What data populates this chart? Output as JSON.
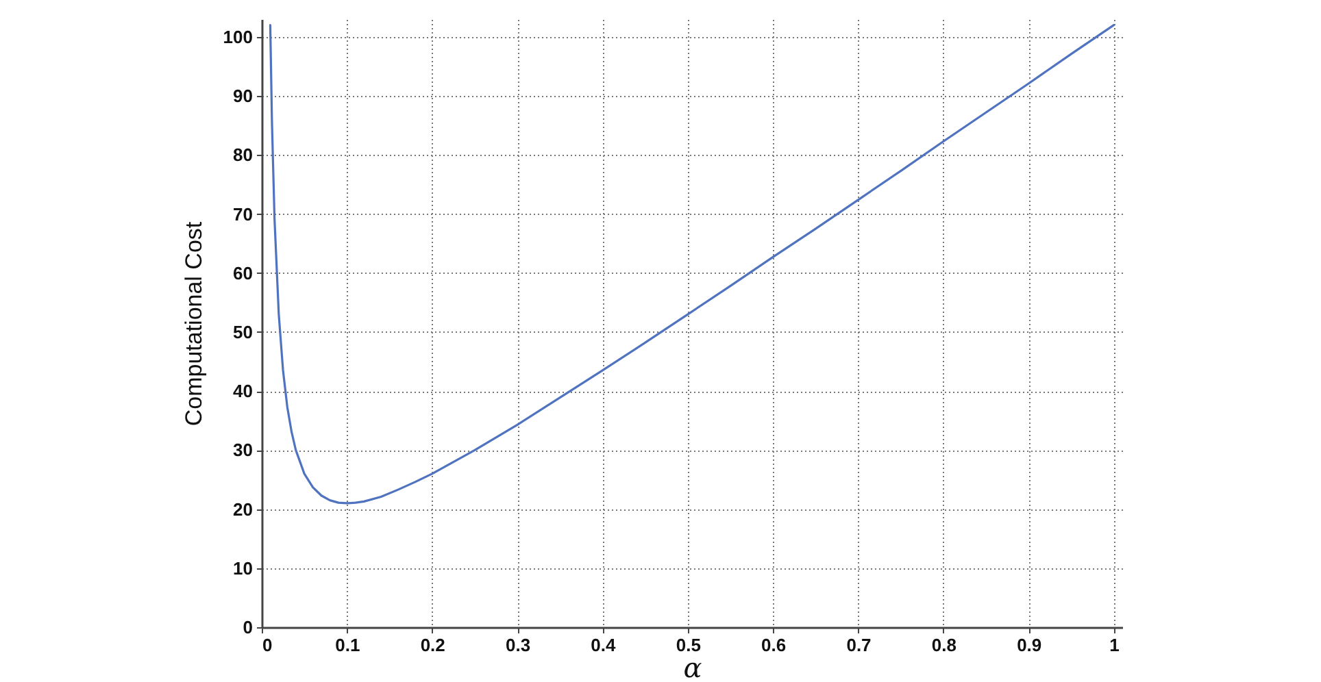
{
  "chart_data": {
    "type": "line",
    "xlabel": "α",
    "ylabel": "Computational Cost",
    "x": [
      0.01,
      0.012,
      0.015,
      0.02,
      0.025,
      0.03,
      0.035,
      0.04,
      0.05,
      0.06,
      0.07,
      0.08,
      0.09,
      0.1,
      0.11,
      0.12,
      0.14,
      0.16,
      0.18,
      0.2,
      0.25,
      0.3,
      0.35,
      0.4,
      0.45,
      0.5,
      0.55,
      0.6,
      0.65,
      0.7,
      0.75,
      0.8,
      0.85,
      0.9,
      0.95,
      1.0
    ],
    "series": [
      {
        "color": "#5073c0",
        "values": [
          102,
          85.5,
          69.2,
          53,
          43.5,
          37.3,
          33.1,
          30,
          26,
          23.7,
          22.3,
          21.5,
          21.1,
          21,
          21.1,
          21.3,
          22.1,
          23.3,
          24.6,
          26,
          30,
          34.3,
          38.9,
          43.5,
          48.2,
          53,
          57.8,
          62.7,
          67.5,
          72.4,
          77.3,
          82.3,
          87.2,
          92.1,
          97.1,
          102
        ]
      }
    ],
    "xlim": [
      0,
      1.01
    ],
    "ylim": [
      0,
      103
    ],
    "xticks": [
      0,
      0.1,
      0.2,
      0.3,
      0.4,
      0.5,
      0.6,
      0.7,
      0.8,
      0.9,
      1
    ],
    "yticks": [
      0,
      10,
      20,
      30,
      40,
      50,
      60,
      70,
      80,
      90,
      100
    ],
    "grid": true,
    "line_style": "solid"
  }
}
